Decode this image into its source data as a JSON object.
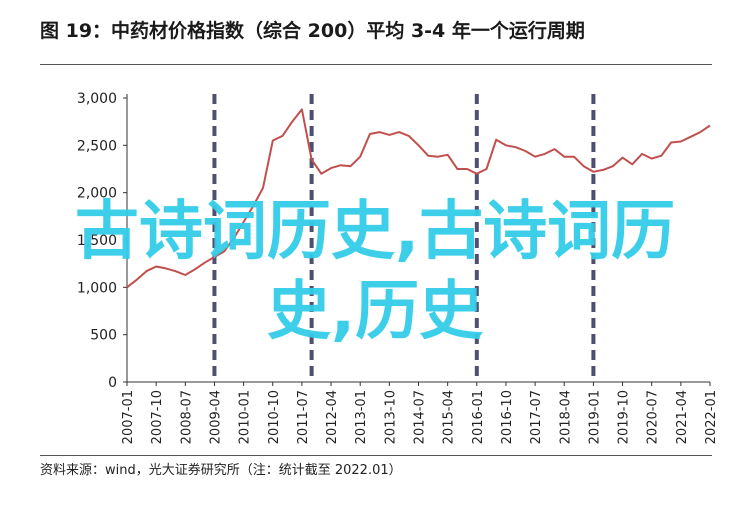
{
  "title": "图 19：中药材价格指数（综合 200）平均 3-4 年一个运行周期",
  "source": "资料来源：wind，光大证券研究所（注：统计截至 2022.01）",
  "watermark": "古诗词历史,古诗词历史,历史",
  "colors": {
    "line": "#c0504d",
    "cycle_marker": "#4f4f6f",
    "axis": "#333333",
    "watermark": "#33cde8"
  },
  "chart_data": {
    "type": "line",
    "ylim": [
      0,
      3000
    ],
    "yticks": [
      0,
      500,
      1000,
      1500,
      2000,
      2500,
      3000
    ],
    "ytick_labels": [
      "0",
      "500",
      "1,000",
      "1,500",
      "2,000",
      "2,500",
      "3,000"
    ],
    "xlim": [
      "2007-01",
      "2022-01"
    ],
    "xtick_labels": [
      "2007-01",
      "2007-10",
      "2008-07",
      "2009-04",
      "2010-01",
      "2010-10",
      "2011-07",
      "2012-04",
      "2013-01",
      "2013-10",
      "2014-07",
      "2015-04",
      "2016-01",
      "2016-10",
      "2017-07",
      "2018-04",
      "2019-01",
      "2019-10",
      "2020-07",
      "2021-04",
      "2022-01"
    ],
    "cycle_markers": [
      "2009-04",
      "2011-10",
      "2016-01",
      "2019-01"
    ],
    "series": [
      {
        "x": [
          "2007-01",
          "2007-04",
          "2007-07",
          "2007-10",
          "2008-01",
          "2008-04",
          "2008-07",
          "2008-10",
          "2009-01",
          "2009-04",
          "2009-07",
          "2009-10",
          "2010-01",
          "2010-04",
          "2010-07",
          "2010-10",
          "2011-01",
          "2011-04",
          "2011-07",
          "2011-10",
          "2012-01",
          "2012-04",
          "2012-07",
          "2012-10",
          "2013-01",
          "2013-04",
          "2013-07",
          "2013-10",
          "2014-01",
          "2014-04",
          "2014-07",
          "2014-10",
          "2015-01",
          "2015-04",
          "2015-07",
          "2015-10",
          "2016-01",
          "2016-04",
          "2016-07",
          "2016-10",
          "2017-01",
          "2017-04",
          "2017-07",
          "2017-10",
          "2018-01",
          "2018-04",
          "2018-07",
          "2018-10",
          "2019-01",
          "2019-04",
          "2019-07",
          "2019-10",
          "2020-01",
          "2020-04",
          "2020-07",
          "2020-10",
          "2021-01",
          "2021-04",
          "2021-07",
          "2021-10",
          "2022-01"
        ],
        "y": [
          1000,
          1080,
          1170,
          1220,
          1200,
          1170,
          1130,
          1190,
          1260,
          1320,
          1380,
          1520,
          1690,
          1860,
          2050,
          2550,
          2600,
          2750,
          2880,
          2350,
          2200,
          2260,
          2290,
          2280,
          2380,
          2620,
          2640,
          2610,
          2640,
          2600,
          2500,
          2390,
          2380,
          2400,
          2250,
          2250,
          2200,
          2250,
          2560,
          2500,
          2480,
          2440,
          2380,
          2410,
          2460,
          2380,
          2380,
          2280,
          2220,
          2240,
          2280,
          2370,
          2300,
          2410,
          2360,
          2390,
          2530,
          2540,
          2590,
          2640,
          2710
        ]
      }
    ]
  }
}
